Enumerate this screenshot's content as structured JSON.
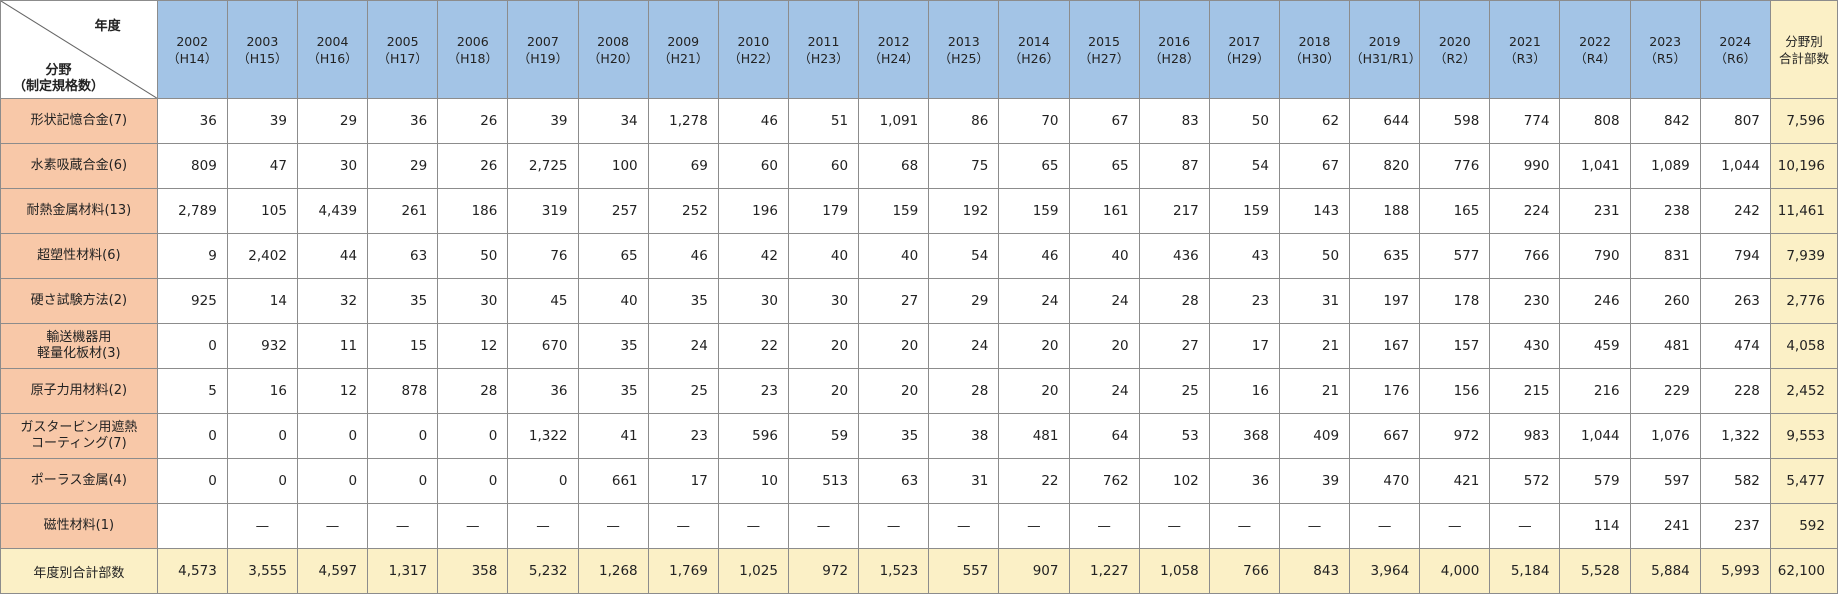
{
  "corner": {
    "year_label": "年度",
    "field_label": "分野",
    "field_sub": "（制定規格数）"
  },
  "years": [
    {
      "y": "2002",
      "h": "（H14）"
    },
    {
      "y": "2003",
      "h": "（H15）"
    },
    {
      "y": "2004",
      "h": "（H16）"
    },
    {
      "y": "2005",
      "h": "（H17）"
    },
    {
      "y": "2006",
      "h": "（H18）"
    },
    {
      "y": "2007",
      "h": "（H19）"
    },
    {
      "y": "2008",
      "h": "（H20）"
    },
    {
      "y": "2009",
      "h": "（H21）"
    },
    {
      "y": "2010",
      "h": "（H22）"
    },
    {
      "y": "2011",
      "h": "（H23）"
    },
    {
      "y": "2012",
      "h": "（H24）"
    },
    {
      "y": "2013",
      "h": "（H25）"
    },
    {
      "y": "2014",
      "h": "（H26）"
    },
    {
      "y": "2015",
      "h": "（H27）"
    },
    {
      "y": "2016",
      "h": "（H28）"
    },
    {
      "y": "2017",
      "h": "（H29）"
    },
    {
      "y": "2018",
      "h": "（H30）"
    },
    {
      "y": "2019",
      "h": "（H31/R1）"
    },
    {
      "y": "2020",
      "h": "（R2）"
    },
    {
      "y": "2021",
      "h": "（R3）"
    },
    {
      "y": "2022",
      "h": "（R4）"
    },
    {
      "y": "2023",
      "h": "（R5）"
    },
    {
      "y": "2024",
      "h": "（R6）"
    }
  ],
  "total_col_header": [
    "分野別",
    "合計部数"
  ],
  "rows": [
    {
      "label": [
        "形状記憶合金(7)"
      ],
      "values": [
        "36",
        "39",
        "29",
        "36",
        "26",
        "39",
        "34",
        "1,278",
        "46",
        "51",
        "1,091",
        "86",
        "70",
        "67",
        "83",
        "50",
        "62",
        "644",
        "598",
        "774",
        "808",
        "842",
        "807"
      ],
      "total": "7,596"
    },
    {
      "label": [
        "水素吸蔵合金(6)"
      ],
      "values": [
        "809",
        "47",
        "30",
        "29",
        "26",
        "2,725",
        "100",
        "69",
        "60",
        "60",
        "68",
        "75",
        "65",
        "65",
        "87",
        "54",
        "67",
        "820",
        "776",
        "990",
        "1,041",
        "1,089",
        "1,044"
      ],
      "total": "10,196"
    },
    {
      "label": [
        "耐熱金属材料(13)"
      ],
      "values": [
        "2,789",
        "105",
        "4,439",
        "261",
        "186",
        "319",
        "257",
        "252",
        "196",
        "179",
        "159",
        "192",
        "159",
        "161",
        "217",
        "159",
        "143",
        "188",
        "165",
        "224",
        "231",
        "238",
        "242"
      ],
      "total": "11,461"
    },
    {
      "label": [
        "超塑性材料(6)"
      ],
      "values": [
        "9",
        "2,402",
        "44",
        "63",
        "50",
        "76",
        "65",
        "46",
        "42",
        "40",
        "40",
        "54",
        "46",
        "40",
        "436",
        "43",
        "50",
        "635",
        "577",
        "766",
        "790",
        "831",
        "794"
      ],
      "total": "7,939"
    },
    {
      "label": [
        "硬さ試験方法(2)"
      ],
      "values": [
        "925",
        "14",
        "32",
        "35",
        "30",
        "45",
        "40",
        "35",
        "30",
        "30",
        "27",
        "29",
        "24",
        "24",
        "28",
        "23",
        "31",
        "197",
        "178",
        "230",
        "246",
        "260",
        "263"
      ],
      "total": "2,776"
    },
    {
      "label": [
        "輸送機器用",
        "軽量化板材(3)"
      ],
      "values": [
        "0",
        "932",
        "11",
        "15",
        "12",
        "670",
        "35",
        "24",
        "22",
        "20",
        "20",
        "24",
        "20",
        "20",
        "27",
        "17",
        "21",
        "167",
        "157",
        "430",
        "459",
        "481",
        "474"
      ],
      "total": "4,058"
    },
    {
      "label": [
        "原子力用材料(2)"
      ],
      "values": [
        "5",
        "16",
        "12",
        "878",
        "28",
        "36",
        "35",
        "25",
        "23",
        "20",
        "20",
        "28",
        "20",
        "24",
        "25",
        "16",
        "21",
        "176",
        "156",
        "215",
        "216",
        "229",
        "228"
      ],
      "total": "2,452"
    },
    {
      "label": [
        "ガスタービン用遮熱",
        "コーティング(7)"
      ],
      "values": [
        "0",
        "0",
        "0",
        "0",
        "0",
        "1,322",
        "41",
        "23",
        "596",
        "59",
        "35",
        "38",
        "481",
        "64",
        "53",
        "368",
        "409",
        "667",
        "972",
        "983",
        "1,044",
        "1,076",
        "1,322"
      ],
      "total": "9,553"
    },
    {
      "label": [
        "ポーラス金属(4)"
      ],
      "values": [
        "0",
        "0",
        "0",
        "0",
        "0",
        "0",
        "661",
        "17",
        "10",
        "513",
        "63",
        "31",
        "22",
        "762",
        "102",
        "36",
        "39",
        "470",
        "421",
        "572",
        "579",
        "597",
        "582"
      ],
      "total": "5,477"
    },
    {
      "label": [
        "磁性材料(1)"
      ],
      "values": [
        "",
        "—",
        "—",
        "—",
        "—",
        "—",
        "—",
        "—",
        "—",
        "—",
        "—",
        "—",
        "—",
        "—",
        "—",
        "—",
        "—",
        "—",
        "—",
        "—",
        "114",
        "241",
        "237"
      ],
      "total": "592"
    }
  ],
  "year_total_label": "年度別合計部数",
  "year_totals": [
    "4,573",
    "3,555",
    "4,597",
    "1,317",
    "358",
    "5,232",
    "1,268",
    "1,769",
    "1,025",
    "972",
    "1,523",
    "557",
    "907",
    "1,227",
    "1,058",
    "766",
    "843",
    "3,964",
    "4,000",
    "5,184",
    "5,528",
    "5,884",
    "5,993"
  ],
  "grand_total": "62,100"
}
